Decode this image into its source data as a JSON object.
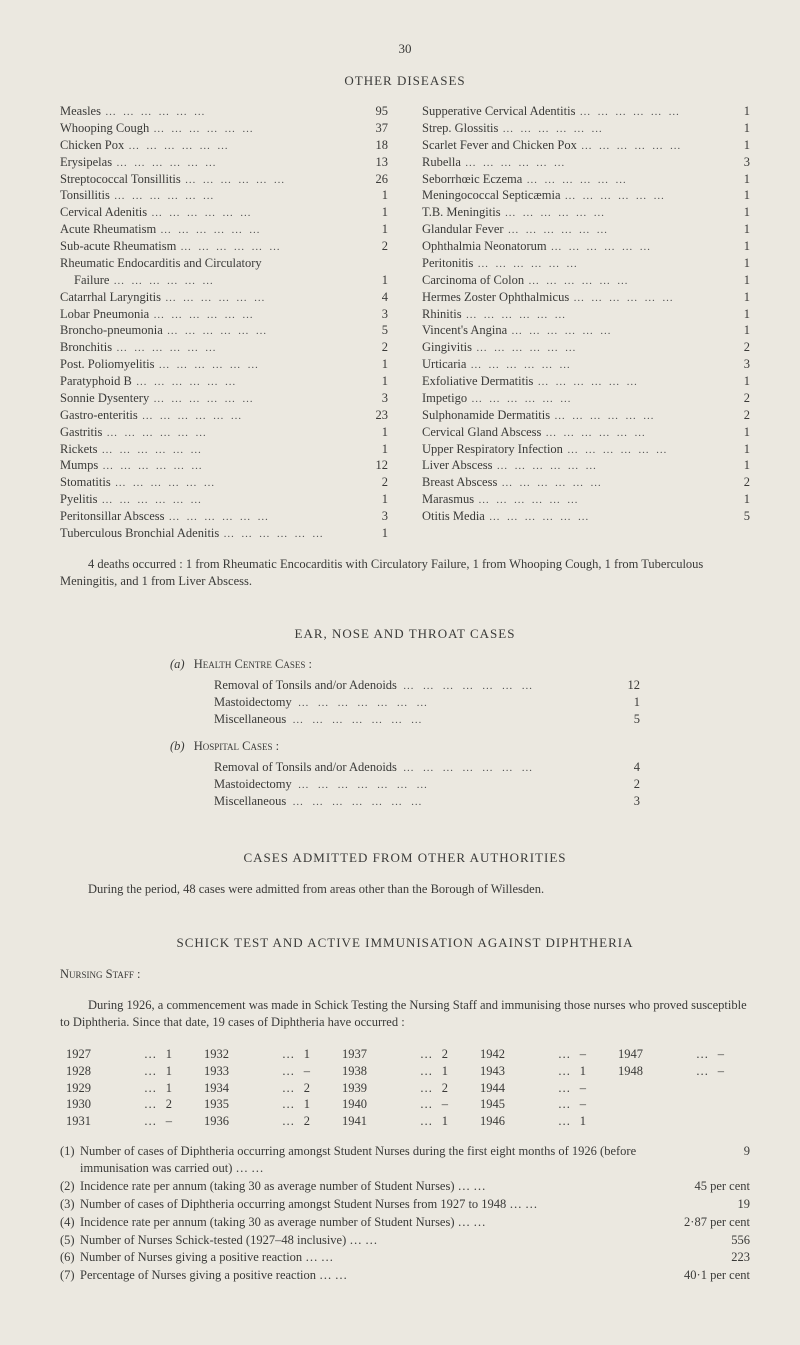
{
  "page_number": "30",
  "other_diseases": {
    "title": "OTHER DISEASES",
    "left": [
      {
        "label": "Measles",
        "value": "95"
      },
      {
        "label": "Whooping Cough",
        "value": "37"
      },
      {
        "label": "Chicken Pox",
        "value": "18"
      },
      {
        "label": "Erysipelas",
        "value": "13"
      },
      {
        "label": "Streptococcal Tonsillitis",
        "value": "26"
      },
      {
        "label": "Tonsillitis",
        "value": "1"
      },
      {
        "label": "Cervical Adenitis",
        "value": "1"
      },
      {
        "label": "Acute Rheumatism",
        "value": "1"
      },
      {
        "label": "Sub-acute Rheumatism",
        "value": "2"
      },
      {
        "label": "Rheumatic Endocarditis and Circulatory",
        "value": ""
      },
      {
        "label": "Failure",
        "value": "1",
        "indent": true
      },
      {
        "label": "Catarrhal Laryngitis",
        "value": "4"
      },
      {
        "label": "Lobar Pneumonia",
        "value": "3"
      },
      {
        "label": "Broncho-pneumonia",
        "value": "5"
      },
      {
        "label": "Bronchitis",
        "value": "2"
      },
      {
        "label": "Post. Poliomyelitis",
        "value": "1"
      },
      {
        "label": "Paratyphoid B",
        "value": "1"
      },
      {
        "label": "Sonnie Dysentery",
        "value": "3"
      },
      {
        "label": "Gastro-enteritis",
        "value": "23"
      },
      {
        "label": "Gastritis",
        "value": "1"
      },
      {
        "label": "Rickets",
        "value": "1"
      },
      {
        "label": "Mumps",
        "value": "12"
      },
      {
        "label": "Stomatitis",
        "value": "2"
      },
      {
        "label": "Pyelitis",
        "value": "1"
      },
      {
        "label": "Peritonsillar Abscess",
        "value": "3"
      },
      {
        "label": "Tuberculous Bronchial Adenitis",
        "value": "1"
      }
    ],
    "right": [
      {
        "label": "Supperative Cervical Adentitis",
        "value": "1"
      },
      {
        "label": "Strep. Glossitis",
        "value": "1"
      },
      {
        "label": "Scarlet Fever and Chicken Pox",
        "value": "1"
      },
      {
        "label": "Rubella",
        "value": "3"
      },
      {
        "label": "Seborrhœic Eczema",
        "value": "1"
      },
      {
        "label": "Meningococcal Septicæmia",
        "value": "1"
      },
      {
        "label": "T.B. Meningitis",
        "value": "1"
      },
      {
        "label": "Glandular Fever",
        "value": "1"
      },
      {
        "label": "Ophthalmia Neonatorum",
        "value": "1"
      },
      {
        "label": "Peritonitis",
        "value": "1"
      },
      {
        "label": "Carcinoma of Colon",
        "value": "1"
      },
      {
        "label": "Hermes Zoster Ophthalmicus",
        "value": "1"
      },
      {
        "label": "Rhinitis",
        "value": "1"
      },
      {
        "label": "Vincent's Angina",
        "value": "1"
      },
      {
        "label": "Gingivitis",
        "value": "2"
      },
      {
        "label": "Urticaria",
        "value": "3"
      },
      {
        "label": "Exfoliative Dermatitis",
        "value": "1"
      },
      {
        "label": "Impetigo",
        "value": "2"
      },
      {
        "label": "Sulphonamide Dermatitis",
        "value": "2"
      },
      {
        "label": "Cervical Gland Abscess",
        "value": "1"
      },
      {
        "label": "Upper Respiratory Infection",
        "value": "1"
      },
      {
        "label": "Liver Abscess",
        "value": "1"
      },
      {
        "label": "Breast Abscess",
        "value": "2"
      },
      {
        "label": "Marasmus",
        "value": "1"
      },
      {
        "label": "Otitis Media",
        "value": "5"
      }
    ],
    "footnote": "4 deaths occurred : 1 from Rheumatic Encocarditis with Circulatory Failure, 1 from Whooping Cough, 1 from Tuberculous Meningitis, and 1 from Liver Abscess."
  },
  "ear_nose_throat": {
    "title": "EAR, NOSE AND THROAT CASES",
    "a_letter": "(a)",
    "a_head": "Health Centre Cases :",
    "a_rows": [
      {
        "label": "Removal of Tonsils and/or Adenoids",
        "value": "12"
      },
      {
        "label": "Mastoidectomy",
        "value": "1"
      },
      {
        "label": "Miscellaneous",
        "value": "5"
      }
    ],
    "b_letter": "(b)",
    "b_head": "Hospital Cases :",
    "b_rows": [
      {
        "label": "Removal of Tonsils and/or Adenoids",
        "value": "4"
      },
      {
        "label": "Mastoidectomy",
        "value": "2"
      },
      {
        "label": "Miscellaneous",
        "value": "3"
      }
    ]
  },
  "cases_admitted": {
    "title": "CASES ADMITTED FROM OTHER AUTHORITIES",
    "para": "During the period, 48 cases were admitted from areas other than the Borough of Willesden."
  },
  "schick": {
    "title": "SCHICK TEST AND ACTIVE IMMUNISATION AGAINST DIPHTHERIA",
    "nursing_heading": "Nursing Staff :",
    "intro": "During 1926, a commencement was made in Schick Testing the Nursing Staff and immunising those nurses who proved susceptible to Diphtheria.  Since that date, 19 cases of Diphtheria have occurred :",
    "rows": [
      {
        "y1": "1927",
        "v1": "1",
        "y2": "1932",
        "v2": "1",
        "y3": "1937",
        "v3": "2",
        "y4": "1942",
        "v4": "–",
        "y5": "1947",
        "v5": "–"
      },
      {
        "y1": "1928",
        "v1": "1",
        "y2": "1933",
        "v2": "–",
        "y3": "1938",
        "v3": "1",
        "y4": "1943",
        "v4": "1",
        "y5": "1948",
        "v5": "–"
      },
      {
        "y1": "1929",
        "v1": "1",
        "y2": "1934",
        "v2": "2",
        "y3": "1939",
        "v3": "2",
        "y4": "1944",
        "v4": "–",
        "y5": "",
        "v5": ""
      },
      {
        "y1": "1930",
        "v1": "2",
        "y2": "1935",
        "v2": "1",
        "y3": "1940",
        "v3": "–",
        "y4": "1945",
        "v4": "–",
        "y5": "",
        "v5": ""
      },
      {
        "y1": "1931",
        "v1": "–",
        "y2": "1936",
        "v2": "2",
        "y3": "1941",
        "v3": "1",
        "y4": "1946",
        "v4": "1",
        "y5": "",
        "v5": ""
      }
    ],
    "list": [
      {
        "n": "(1)",
        "t": "Number of cases of Diphtheria occurring amongst Student Nurses during the first eight months of 1926 (before immunisation was carried out)",
        "v": "9"
      },
      {
        "n": "(2)",
        "t": "Incidence rate per annum (taking 30 as average number of Student Nurses)",
        "v": "45 per cent"
      },
      {
        "n": "(3)",
        "t": "Number of cases of Diphtheria occurring amongst Student Nurses from 1927 to 1948",
        "v": "19"
      },
      {
        "n": "(4)",
        "t": "Incidence rate per annum (taking 30 as average number of Student Nurses)",
        "v": "2·87 per cent"
      },
      {
        "n": "(5)",
        "t": "Number of Nurses Schick-tested (1927–48 inclusive)",
        "v": "556"
      },
      {
        "n": "(6)",
        "t": "Number of Nurses giving a positive reaction",
        "v": "223"
      },
      {
        "n": "(7)",
        "t": "Percentage of Nurses giving a positive reaction",
        "v": "40·1 per cent"
      }
    ]
  }
}
